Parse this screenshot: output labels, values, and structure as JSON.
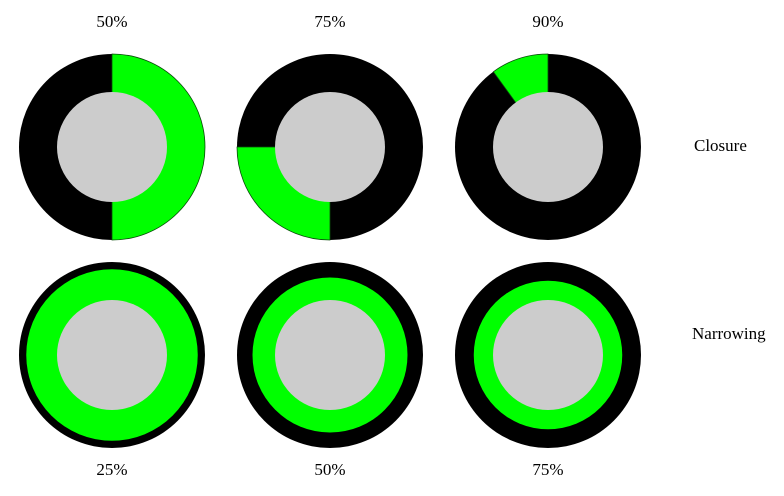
{
  "colors": {
    "ring": "#000000",
    "fill": "#00ff00",
    "inner": "#cccccc",
    "background": "#ffffff"
  },
  "rows": {
    "closure": {
      "label": "Closure",
      "items": [
        {
          "label": "50%",
          "value": 0.5
        },
        {
          "label": "75%",
          "value": 0.75
        },
        {
          "label": "90%",
          "value": 0.9
        }
      ]
    },
    "narrowing": {
      "label": "Narrowing",
      "items": [
        {
          "label": "25%",
          "value": 0.25
        },
        {
          "label": "50%",
          "value": 0.5
        },
        {
          "label": "75%",
          "value": 0.75
        }
      ]
    }
  }
}
